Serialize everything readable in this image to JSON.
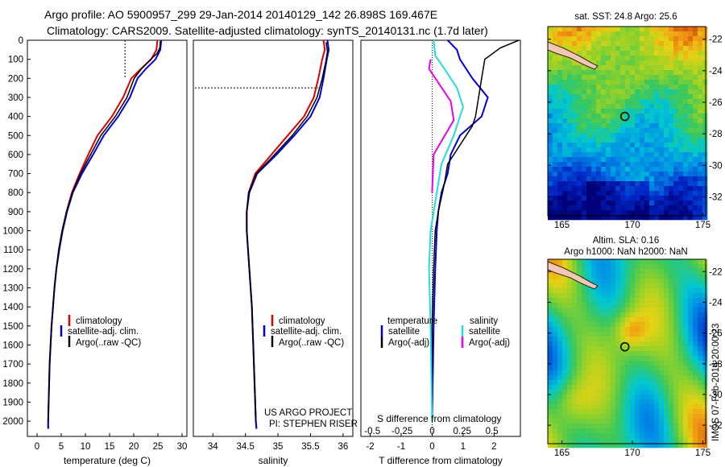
{
  "figure": {
    "title_line1": "Argo profile: AO 5900957_299 29-Jan-2014 20140129_142 26.898S 169.467E",
    "title_line2": "Climatology: CARS2009. Satellite-adjusted climatology: synTS_20140131.nc (1.7d later)",
    "credit": "US ARGO PROJECT",
    "pi": "PI: STEPHEN RISER",
    "watermark": "IMOS 07-Feb-2014 20:00:23"
  },
  "colors": {
    "climatology": "#dd0000",
    "satellite": "#0000dd",
    "argo": "#000000",
    "sat_salinity": "#22dddd",
    "argo_salinity": "#ee00ee"
  },
  "legends": {
    "temp": [
      "climatology",
      "satellite-adj. clim.",
      "Argo(..raw -QC)"
    ],
    "sal": [
      "climatology",
      "satellite-adj. clim.",
      "Argo(..raw -QC)"
    ],
    "diff_head_t": "temperature",
    "diff_head_s": "salinity",
    "diff_t": [
      "satellite",
      "Argo(-adj)"
    ],
    "diff_s": [
      "satellite",
      "Argo(-adj)"
    ]
  },
  "maps": {
    "sst_title": "sat. SST: 24.8  Argo: 25.6",
    "sla_title1": "Altim. SLA: 0.16",
    "sla_title2": "Argo h1000: NaN  h2000: NaN",
    "x_ticks": [
      "165",
      "170",
      "175"
    ],
    "y_ticks": [
      "-22",
      "-24",
      "-26",
      "-28",
      "-30",
      "-32"
    ],
    "float_lon": 169.467,
    "float_lat": -26.898
  },
  "chart_data": [
    {
      "type": "line",
      "id": "temperature",
      "xlabel": "temperature (deg C)",
      "ylabel": "",
      "xlim": [
        -2,
        31
      ],
      "ylim": [
        2080,
        0
      ],
      "x_ticks": [
        0,
        5,
        10,
        15,
        20,
        25,
        30
      ],
      "y_ticks": [
        0,
        100,
        200,
        300,
        400,
        500,
        600,
        700,
        800,
        900,
        1000,
        1100,
        1200,
        1300,
        1400,
        1500,
        1600,
        1700,
        1800,
        1900,
        2000
      ],
      "series": [
        {
          "name": "climatology",
          "color": "#dd0000",
          "points": [
            [
              24.9,
              0
            ],
            [
              24.7,
              50
            ],
            [
              23.6,
              100
            ],
            [
              21.5,
              150
            ],
            [
              19.5,
              200
            ],
            [
              17.8,
              300
            ],
            [
              15.5,
              400
            ],
            [
              12.5,
              500
            ],
            [
              10.6,
              600
            ],
            [
              8.8,
              700
            ],
            [
              7.2,
              800
            ],
            [
              6.1,
              900
            ],
            [
              5.2,
              1000
            ],
            [
              4.5,
              1100
            ],
            [
              4.0,
              1200
            ],
            [
              3.6,
              1300
            ],
            [
              3.3,
              1400
            ],
            [
              3.0,
              1500
            ],
            [
              2.8,
              1600
            ],
            [
              2.6,
              1700
            ],
            [
              2.5,
              1800
            ],
            [
              2.4,
              1900
            ],
            [
              2.3,
              2000
            ],
            [
              2.3,
              2040
            ]
          ]
        },
        {
          "name": "satellite-adj. clim.",
          "color": "#0000dd",
          "points": [
            [
              25.7,
              0
            ],
            [
              25.5,
              50
            ],
            [
              24.5,
              100
            ],
            [
              22.5,
              150
            ],
            [
              20.8,
              200
            ],
            [
              19.2,
              300
            ],
            [
              16.8,
              400
            ],
            [
              13.8,
              500
            ],
            [
              11.6,
              600
            ],
            [
              9.3,
              700
            ],
            [
              7.4,
              800
            ],
            [
              6.2,
              900
            ],
            [
              5.3,
              1000
            ],
            [
              4.6,
              1100
            ],
            [
              4.0,
              1200
            ],
            [
              3.6,
              1300
            ],
            [
              3.3,
              1400
            ],
            [
              3.0,
              1500
            ],
            [
              2.8,
              1600
            ],
            [
              2.6,
              1700
            ],
            [
              2.5,
              1800
            ],
            [
              2.4,
              1900
            ],
            [
              2.3,
              2000
            ],
            [
              2.3,
              2040
            ]
          ]
        },
        {
          "name": "Argo(..raw -QC)",
          "color": "#000000",
          "points": [
            [
              25.5,
              5
            ],
            [
              25.4,
              40
            ],
            [
              24.8,
              70
            ],
            [
              23.5,
              100
            ],
            [
              21.6,
              150
            ],
            [
              20.1,
              200
            ],
            [
              18.6,
              300
            ],
            [
              16.2,
              400
            ],
            [
              13.2,
              500
            ],
            [
              11.1,
              600
            ],
            [
              9.0,
              700
            ],
            [
              7.3,
              800
            ],
            [
              6.1,
              900
            ],
            [
              5.2,
              1000
            ],
            [
              4.5,
              1100
            ],
            [
              4.0,
              1200
            ],
            [
              3.6,
              1300
            ],
            [
              3.3,
              1400
            ],
            [
              3.0,
              1500
            ],
            [
              2.8,
              1600
            ],
            [
              2.6,
              1700
            ],
            [
              2.5,
              1800
            ],
            [
              2.4,
              1900
            ],
            [
              2.3,
              2000
            ]
          ]
        }
      ],
      "guide_x": 18.2,
      "guide_depth_range": [
        0,
        200
      ]
    },
    {
      "type": "line",
      "id": "salinity",
      "xlabel": "salinity",
      "ylabel": "",
      "xlim": [
        33.7,
        36.15
      ],
      "ylim": [
        2080,
        0
      ],
      "x_ticks": [
        34,
        34.5,
        35,
        35.5,
        36
      ],
      "series": [
        {
          "name": "climatology",
          "color": "#dd0000",
          "points": [
            [
              35.7,
              0
            ],
            [
              35.72,
              50
            ],
            [
              35.68,
              100
            ],
            [
              35.62,
              200
            ],
            [
              35.55,
              300
            ],
            [
              35.4,
              400
            ],
            [
              35.15,
              500
            ],
            [
              34.9,
              600
            ],
            [
              34.65,
              700
            ],
            [
              34.55,
              800
            ],
            [
              34.52,
              900
            ],
            [
              34.52,
              1000
            ],
            [
              34.54,
              1100
            ],
            [
              34.56,
              1200
            ],
            [
              34.58,
              1300
            ],
            [
              34.6,
              1400
            ],
            [
              34.61,
              1500
            ],
            [
              34.62,
              1600
            ],
            [
              34.63,
              1700
            ],
            [
              34.64,
              1800
            ],
            [
              34.65,
              1900
            ],
            [
              34.66,
              2000
            ],
            [
              34.67,
              2040
            ]
          ]
        },
        {
          "name": "satellite-adj. clim.",
          "color": "#0000dd",
          "points": [
            [
              35.76,
              0
            ],
            [
              35.78,
              50
            ],
            [
              35.75,
              100
            ],
            [
              35.7,
              200
            ],
            [
              35.64,
              300
            ],
            [
              35.5,
              400
            ],
            [
              35.25,
              500
            ],
            [
              34.98,
              600
            ],
            [
              34.68,
              700
            ],
            [
              34.56,
              800
            ],
            [
              34.52,
              900
            ],
            [
              34.52,
              1000
            ],
            [
              34.54,
              1100
            ],
            [
              34.56,
              1200
            ],
            [
              34.58,
              1300
            ],
            [
              34.6,
              1400
            ],
            [
              34.61,
              1500
            ],
            [
              34.62,
              1600
            ],
            [
              34.63,
              1700
            ],
            [
              34.64,
              1800
            ],
            [
              34.65,
              1900
            ],
            [
              34.66,
              2000
            ],
            [
              34.67,
              2040
            ]
          ]
        },
        {
          "name": "Argo(..raw -QC)",
          "color": "#000000",
          "points": [
            [
              35.74,
              10
            ],
            [
              35.76,
              60
            ],
            [
              35.73,
              120
            ],
            [
              35.68,
              200
            ],
            [
              35.6,
              300
            ],
            [
              35.45,
              400
            ],
            [
              35.22,
              500
            ],
            [
              34.95,
              600
            ],
            [
              34.67,
              700
            ],
            [
              34.55,
              800
            ],
            [
              34.52,
              900
            ],
            [
              34.52,
              1000
            ],
            [
              34.54,
              1100
            ],
            [
              34.56,
              1200
            ],
            [
              34.58,
              1300
            ],
            [
              34.6,
              1400
            ],
            [
              34.61,
              1500
            ],
            [
              34.62,
              1600
            ],
            [
              34.63,
              1700
            ],
            [
              34.64,
              1800
            ],
            [
              34.65,
              1900
            ],
            [
              34.66,
              2000
            ]
          ]
        }
      ],
      "guide_depth": 250
    },
    {
      "type": "line",
      "id": "differences",
      "xlabel": "T difference from climatology",
      "top_label": "S difference from climatology",
      "xlim": [
        -2.3,
        2.85
      ],
      "ylim": [
        2080,
        0
      ],
      "x_ticks": [
        -2,
        -1,
        0,
        1,
        2
      ],
      "s_ticks": [
        "-0.5",
        "-0.25",
        "0",
        "0.25",
        "0.5"
      ],
      "s_tick_positions": [
        -1.93,
        -0.97,
        0,
        0.97,
        1.93
      ],
      "series": [
        {
          "name": "satellite (temperature)",
          "color": "#0000dd",
          "points": [
            [
              0.5,
              0
            ],
            [
              0.8,
              50
            ],
            [
              0.9,
              100
            ],
            [
              1.3,
              200
            ],
            [
              1.8,
              300
            ],
            [
              1.6,
              400
            ],
            [
              0.9,
              500
            ],
            [
              0.6,
              600
            ],
            [
              0.5,
              700
            ],
            [
              0.3,
              800
            ],
            [
              0.2,
              900
            ],
            [
              0.15,
              1000
            ],
            [
              0.1,
              1200
            ],
            [
              0.05,
              1500
            ],
            [
              0.0,
              2000
            ]
          ]
        },
        {
          "name": "Argo(-adj) (temperature)",
          "color": "#000000",
          "points": [
            [
              2.8,
              0
            ],
            [
              2.2,
              40
            ],
            [
              1.7,
              100
            ],
            [
              1.6,
              200
            ],
            [
              1.4,
              400
            ],
            [
              1.3,
              450
            ],
            [
              0.5,
              650
            ],
            [
              0.4,
              750
            ],
            [
              0.2,
              900
            ],
            [
              0.1,
              1000
            ],
            [
              0.05,
              1200
            ],
            [
              0.0,
              1500
            ],
            [
              0.0,
              2000
            ]
          ]
        },
        {
          "name": "satellite (salinity)",
          "color": "#22dddd",
          "points": [
            [
              0.05,
              0
            ],
            [
              0.1,
              80
            ],
            [
              0.4,
              150
            ],
            [
              0.8,
              250
            ],
            [
              1.0,
              350
            ],
            [
              0.7,
              500
            ],
            [
              0.3,
              650
            ],
            [
              0.1,
              850
            ],
            [
              -0.05,
              1000
            ],
            [
              -0.1,
              1200
            ],
            [
              -0.05,
              1500
            ],
            [
              0.0,
              2000
            ]
          ]
        },
        {
          "name": "Argo(-adj) (salinity)",
          "color": "#ee00ee",
          "points": [
            [
              -0.05,
              100
            ],
            [
              -0.1,
              150
            ],
            [
              0.6,
              320
            ],
            [
              0.7,
              420
            ],
            [
              0.05,
              600
            ],
            [
              0.0,
              800
            ]
          ]
        }
      ]
    }
  ]
}
